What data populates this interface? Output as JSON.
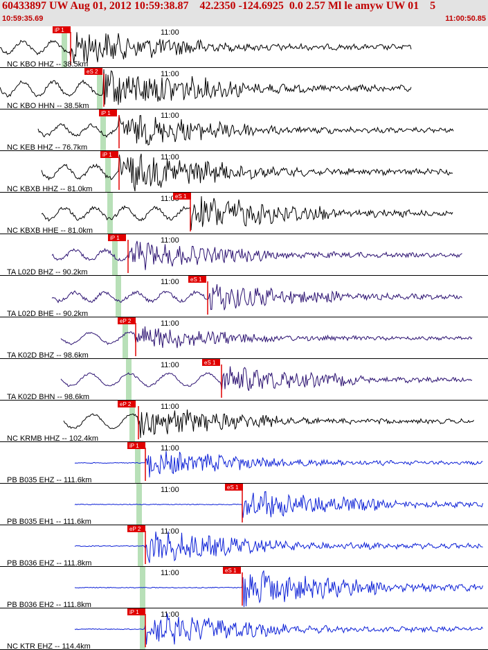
{
  "header": {
    "title": "60433897 UW Aug 01, 2012 10:59:38.87    42.2350 -124.6925  0.0 2.57 Ml le amyw UW 01    5",
    "time_start": "10:59:35.69",
    "time_end": "11:00:50.85"
  },
  "chart_data": {
    "type": "line",
    "title": "60433897 UW Aug 01, 2012 10:59:38.87    42.2350 -124.6925  0.0 2.57 Ml le amyw UW 01    5",
    "x_range": [
      "10:59:35.69",
      "11:00:50.85"
    ],
    "x_tick_label": "11:00",
    "colors": {
      "pick": "#e00000",
      "green_band": "#b8e0b8",
      "trace_black": "#000000",
      "trace_purple": "#2a1070",
      "trace_blue": "#0b1fd6",
      "divider": "#000000"
    },
    "traces": [
      {
        "label": "NC KBO HHZ -- 38.5km",
        "picks": [
          "iP 1"
        ],
        "color": "black"
      },
      {
        "label": "NC KBO HHN -- 38.5km",
        "picks": [
          "eS 2"
        ],
        "color": "black"
      },
      {
        "label": "NC KEB HHZ -- 76.7km",
        "picks": [
          "iP 1"
        ],
        "color": "black"
      },
      {
        "label": "NC KBXB HHZ -- 81.0km",
        "picks": [
          "iP 1"
        ],
        "color": "black"
      },
      {
        "label": "NC KBXB HHE -- 81.0km",
        "picks": [
          "eS 1"
        ],
        "color": "black"
      },
      {
        "label": "TA L02D BHZ -- 90.2km",
        "picks": [
          "iP 1"
        ],
        "color": "purple"
      },
      {
        "label": "TA L02D BHE -- 90.2km",
        "picks": [
          "eS 1"
        ],
        "color": "purple"
      },
      {
        "label": "TA K02D BHZ -- 98.6km",
        "picks": [
          "eP 2"
        ],
        "color": "purple"
      },
      {
        "label": "TA K02D BHN -- 98.6km",
        "picks": [
          "eS 1"
        ],
        "color": "purple"
      },
      {
        "label": "NC KRMB HHZ -- 102.4km",
        "picks": [
          "eP 2"
        ],
        "color": "black"
      },
      {
        "label": "PB B035 EHZ -- 111.6km",
        "picks": [
          "iP 1"
        ],
        "color": "blue"
      },
      {
        "label": "PB B035 EH1 -- 111.6km",
        "picks": [
          "eS 1"
        ],
        "color": "blue"
      },
      {
        "label": "PB B036 EHZ -- 111.8km",
        "picks": [
          "eP 2"
        ],
        "color": "blue"
      },
      {
        "label": "PB B036 EH2 -- 111.8km",
        "picks": [
          "eS 1"
        ],
        "color": "blue"
      },
      {
        "label": "NC KTR EHZ -- 114.4km",
        "picks": [
          "iP 1"
        ],
        "color": "blue"
      }
    ]
  }
}
